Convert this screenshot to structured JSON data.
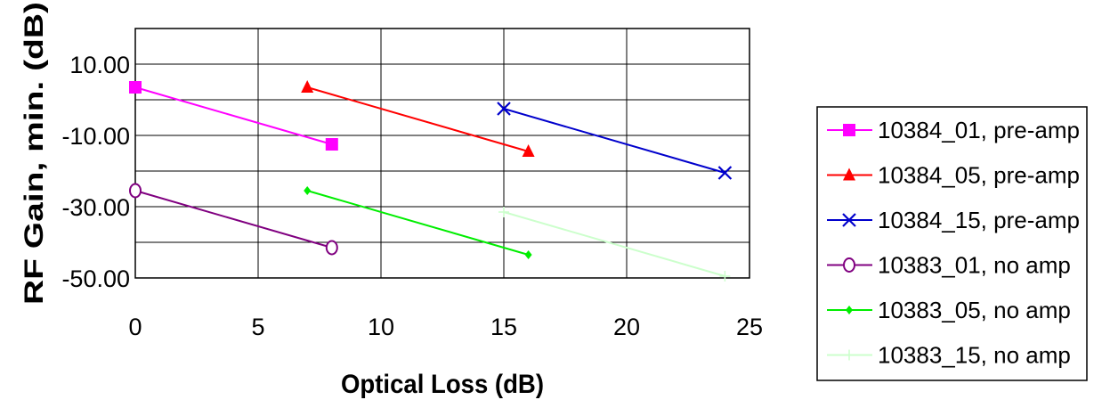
{
  "chart_data": {
    "type": "line",
    "title": "",
    "xlabel": "Optical Loss (dB)",
    "ylabel": "RF Gain, min. (dB)",
    "xlim": [
      0,
      25
    ],
    "ylim": [
      -50,
      20
    ],
    "xticks": [
      0,
      5,
      10,
      15,
      20,
      25
    ],
    "xtick_labels": [
      "0",
      "5",
      "10",
      "15",
      "20",
      "25"
    ],
    "yticks": [
      -50,
      -30,
      -10,
      10
    ],
    "ytick_labels": [
      "-50.00",
      "-30.00",
      "-10.00",
      "10.00"
    ],
    "grid": true,
    "legend_position": "right",
    "series": [
      {
        "name": "10384_01, pre-amp",
        "color": "#ff00ff",
        "marker": "square",
        "x": [
          0,
          8
        ],
        "y": [
          3.5,
          -12.5
        ]
      },
      {
        "name": "10384_05, pre-amp",
        "color": "#ff0000",
        "marker": "triangle",
        "x": [
          7,
          16
        ],
        "y": [
          3.5,
          -14.5
        ]
      },
      {
        "name": "10384_15, pre-amp",
        "color": "#0000cc",
        "marker": "x",
        "x": [
          15,
          24
        ],
        "y": [
          -2.5,
          -20.5
        ]
      },
      {
        "name": "10383_01, no amp",
        "color": "#800080",
        "marker": "circle",
        "x": [
          0,
          8
        ],
        "y": [
          -25.5,
          -41.5
        ]
      },
      {
        "name": "10383_05, no amp",
        "color": "#00ee00",
        "marker": "diamond",
        "x": [
          7,
          16
        ],
        "y": [
          -25.5,
          -43.5
        ]
      },
      {
        "name": "10383_15, no amp",
        "color": "#ccffcc",
        "marker": "plus",
        "x": [
          15,
          24
        ],
        "y": [
          -31.5,
          -49.5
        ]
      }
    ]
  }
}
